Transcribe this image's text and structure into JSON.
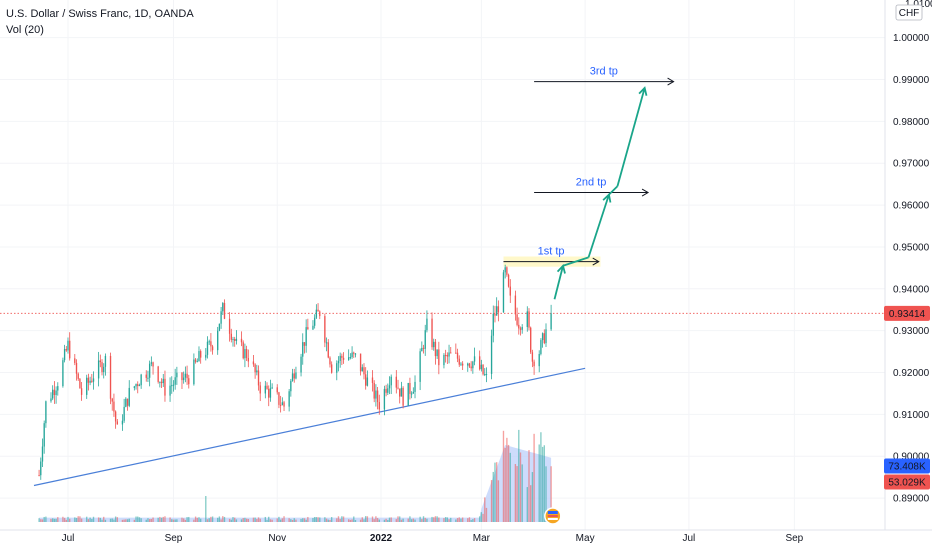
{
  "header": {
    "title": "U.S. Dollar / Swiss Franc, 1D, OANDA",
    "indicator": "Vol (20)"
  },
  "price_axis": {
    "currency": "CHF",
    "top_partial_label": "1.01000"
  },
  "colors": {
    "up": "#26a69a",
    "down": "#ef5350",
    "trendline": "#4a7fd8",
    "arrow": "#1aa58a",
    "target_line": "#131722",
    "annotation_text": "#2962ff",
    "zone": "#fff5b8",
    "last_price": "#ef5350",
    "vol_ma_fill": "#bcd0fb",
    "badge_blue": "#2962ff",
    "badge_red": "#ef5350"
  },
  "chart_data": {
    "type": "candlestick",
    "symbol": "USDCHF",
    "timeframe": "1D",
    "y_ticks": [
      "1.00000",
      "0.99000",
      "0.98000",
      "0.97000",
      "0.96000",
      "0.95000",
      "0.94000",
      "0.93000",
      "0.92000",
      "0.91000",
      "0.90000",
      "0.89000"
    ],
    "ylim": [
      0.885,
      1.009
    ],
    "x_ticks": [
      "Jul",
      "Sep",
      "Nov",
      "2022",
      "Mar",
      "May",
      "Jul",
      "Sep"
    ],
    "last_price": "0.93414",
    "volume_badges": [
      "73.408K",
      "53.029K"
    ],
    "price_anchors": [
      [
        "2021-06-14",
        0.8955
      ],
      [
        "2021-06-18",
        0.9125
      ],
      [
        "2021-06-25",
        0.918
      ],
      [
        "2021-07-01",
        0.9265
      ],
      [
        "2021-07-09",
        0.915
      ],
      [
        "2021-07-16",
        0.9195
      ],
      [
        "2021-07-23",
        0.923
      ],
      [
        "2021-07-30",
        0.906
      ],
      [
        "2021-08-06",
        0.915
      ],
      [
        "2021-08-13",
        0.919
      ],
      [
        "2021-08-20",
        0.922
      ],
      [
        "2021-08-27",
        0.916
      ],
      [
        "2021-09-03",
        0.918
      ],
      [
        "2021-09-10",
        0.919
      ],
      [
        "2021-09-17",
        0.924
      ],
      [
        "2021-09-24",
        0.927
      ],
      [
        "2021-09-30",
        0.935
      ],
      [
        "2021-10-08",
        0.9265
      ],
      [
        "2021-10-15",
        0.924
      ],
      [
        "2021-10-22",
        0.9165
      ],
      [
        "2021-10-29",
        0.915
      ],
      [
        "2021-11-05",
        0.912
      ],
      [
        "2021-11-12",
        0.922
      ],
      [
        "2021-11-19",
        0.93
      ],
      [
        "2021-11-26",
        0.9345
      ],
      [
        "2021-12-03",
        0.9215
      ],
      [
        "2021-12-10",
        0.924
      ],
      [
        "2021-12-17",
        0.9235
      ],
      [
        "2021-12-24",
        0.918
      ],
      [
        "2021-12-31",
        0.9125
      ],
      [
        "2022-01-07",
        0.92
      ],
      [
        "2022-01-14",
        0.914
      ],
      [
        "2022-01-21",
        0.9175
      ],
      [
        "2022-01-28",
        0.931
      ],
      [
        "2022-02-04",
        0.9225
      ],
      [
        "2022-02-11",
        0.924
      ],
      [
        "2022-02-18",
        0.923
      ],
      [
        "2022-02-25",
        0.9225
      ],
      [
        "2022-03-04",
        0.9185
      ],
      [
        "2022-03-08",
        0.933
      ],
      [
        "2022-03-11",
        0.936
      ],
      [
        "2022-03-15",
        0.944
      ],
      [
        "2022-03-18",
        0.937
      ],
      [
        "2022-03-23",
        0.932
      ],
      [
        "2022-03-28",
        0.933
      ],
      [
        "2022-03-31",
        0.923
      ],
      [
        "2022-04-04",
        0.925
      ],
      [
        "2022-04-08",
        0.93
      ],
      [
        "2022-04-11",
        0.9341
      ]
    ],
    "trendline": [
      [
        "2021-06-11",
        0.893
      ],
      [
        "2022-05-01",
        0.921
      ]
    ],
    "target_zone": [
      [
        "2022-03-14",
        0.946
      ],
      [
        "2022-05-10",
        0.947
      ]
    ],
    "targets": [
      {
        "label": "1st tp",
        "value": 0.9465,
        "x_start": "2022-03-14",
        "x_end": "2022-05-09"
      },
      {
        "label": "2nd tp",
        "value": 0.963,
        "x_start": "2022-04-01",
        "x_end": "2022-06-07"
      },
      {
        "label": "3rd tp",
        "value": 0.9895,
        "x_start": "2022-04-01",
        "x_end": "2022-06-22"
      }
    ],
    "projected_path": [
      [
        "2022-04-13",
        0.9375
      ],
      [
        "2022-04-18",
        0.9455
      ],
      [
        "2022-05-03",
        0.9475
      ],
      [
        "2022-05-15",
        0.9625
      ],
      [
        "2022-05-20",
        0.9645
      ],
      [
        "2022-06-05",
        0.988
      ]
    ],
    "volume_spike_date": "2021-09-20",
    "volume_ramp": [
      [
        "2022-03-01",
        0.12
      ],
      [
        "2022-03-15",
        0.7
      ],
      [
        "2022-04-12",
        0.58
      ]
    ]
  }
}
